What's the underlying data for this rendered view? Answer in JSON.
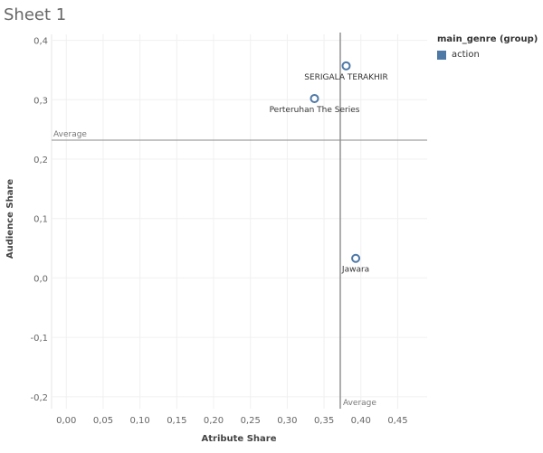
{
  "sheet": {
    "title": "Sheet 1"
  },
  "legend": {
    "title": "main_genre (group)",
    "items": [
      {
        "label": "action",
        "color": "#4e79a7"
      }
    ]
  },
  "chart_data": {
    "type": "scatter",
    "xlabel": "Atribute Share",
    "ylabel": "Audience Share",
    "xlim": [
      -0.02,
      0.49
    ],
    "ylim": [
      -0.22,
      0.41
    ],
    "x_ticks": [
      "0,00",
      "0,05",
      "0,10",
      "0,15",
      "0,20",
      "0,25",
      "0,30",
      "0,35",
      "0,40",
      "0,45"
    ],
    "y_ticks": [
      "0,4",
      "0,3",
      "0,2",
      "0,1",
      "0,0",
      "-0,1",
      "-0,2"
    ],
    "grid": true,
    "points": [
      {
        "label": "SERIGALA TERAKHIR",
        "x": 0.38,
        "y": 0.357,
        "group": "action"
      },
      {
        "label": "Perteruhan The Series",
        "x": 0.337,
        "y": 0.302,
        "group": "action"
      },
      {
        "label": "Jawara",
        "x": 0.393,
        "y": 0.033,
        "group": "action"
      }
    ],
    "reference_lines": [
      {
        "axis": "y",
        "value": 0.232,
        "label": "Average"
      },
      {
        "axis": "x",
        "value": 0.372,
        "label": "Average"
      }
    ],
    "marker_color": "#4e79a7"
  }
}
